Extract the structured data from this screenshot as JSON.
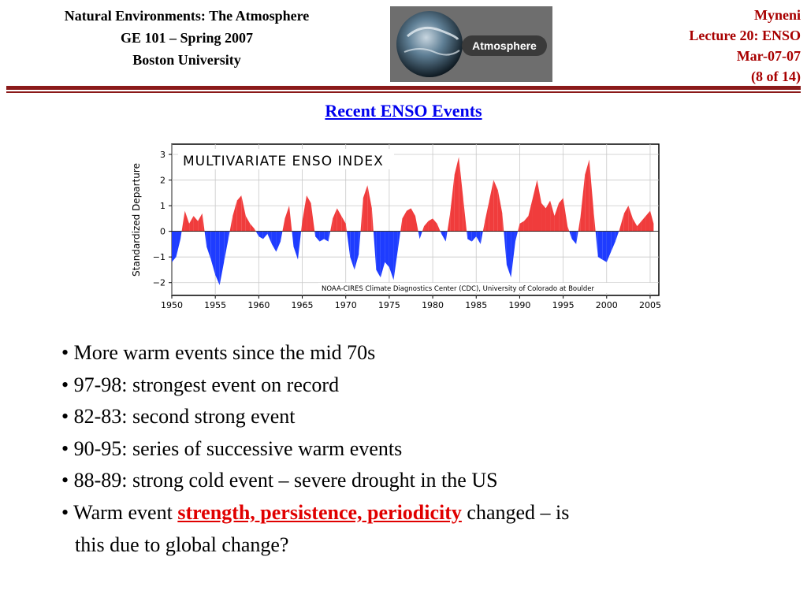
{
  "header": {
    "left_lines": [
      "Natural Environments: The Atmosphere",
      "GE 101 – Spring 2007",
      "Boston University"
    ],
    "logo_text": "Atmosphere",
    "right_lines": [
      "Myneni",
      "Lecture 20: ENSO",
      "Mar-07-07",
      "(8 of 14)"
    ]
  },
  "slide": {
    "title": "Recent ENSO Events"
  },
  "colors": {
    "accent_rule": "#8b1a1a",
    "title_link": "#0000ee",
    "positive": "#f03c3c",
    "negative": "#1e3cff",
    "emphasis": "#e00000"
  },
  "bullets": {
    "items": [
      "• More warm events since the mid 70s",
      "• 97-98: strongest event on record",
      "• 82-83: second strong event",
      "• 90-95: series of successive warm events",
      "• 88-89: strong cold event – severe drought in the US"
    ],
    "last_prefix": "• Warm event ",
    "last_emphasis": "strength, persistence, periodicity",
    "last_suffix": " changed – is",
    "last_continuation": "this due to global change?"
  },
  "chart_data": {
    "type": "area",
    "title": "MULTIVARIATE ENSO INDEX",
    "ylabel": "Standardized Departure",
    "xlabel": "",
    "credit": "NOAA-CIRES Climate Diagnostics Center (CDC), University of Colorado at Boulder",
    "xlim": [
      1950,
      2006
    ],
    "ylim": [
      -2.5,
      3.4
    ],
    "xticks": [
      1950,
      1955,
      1960,
      1965,
      1970,
      1975,
      1980,
      1985,
      1990,
      1995,
      2000,
      2005
    ],
    "yticks": [
      3,
      2,
      1,
      0,
      -1,
      -2
    ],
    "ytick_labels": [
      "3",
      "2",
      "1",
      "0",
      "−1",
      "−2"
    ],
    "grid": true,
    "series": [
      {
        "x": [
          1950.0,
          1950.5,
          1951.0,
          1951.5,
          1952.0,
          1952.5,
          1953.0,
          1953.5,
          1954.0,
          1954.5,
          1955.0,
          1955.5,
          1956.0,
          1956.5,
          1957.0,
          1957.5,
          1958.0,
          1958.5,
          1959.0,
          1959.5,
          1960.0,
          1960.5,
          1961.0,
          1961.5,
          1962.0,
          1962.5,
          1963.0,
          1963.5,
          1964.0,
          1964.5,
          1965.0,
          1965.5,
          1966.0,
          1966.5,
          1967.0,
          1967.5,
          1968.0,
          1968.5,
          1969.0,
          1969.5,
          1970.0,
          1970.5,
          1971.0,
          1971.5,
          1972.0,
          1972.5,
          1973.0,
          1973.5,
          1974.0,
          1974.5,
          1975.0,
          1975.5,
          1976.0,
          1976.5,
          1977.0,
          1977.5,
          1978.0,
          1978.5,
          1979.0,
          1979.5,
          1980.0,
          1980.5,
          1981.0,
          1981.5,
          1982.0,
          1982.5,
          1983.0,
          1983.5,
          1984.0,
          1984.5,
          1985.0,
          1985.5,
          1986.0,
          1986.5,
          1987.0,
          1987.5,
          1988.0,
          1988.5,
          1989.0,
          1989.5,
          1990.0,
          1990.5,
          1991.0,
          1991.5,
          1992.0,
          1992.5,
          1993.0,
          1993.5,
          1994.0,
          1994.5,
          1995.0,
          1995.5,
          1996.0,
          1996.5,
          1997.0,
          1997.5,
          1998.0,
          1998.5,
          1999.0,
          1999.5,
          2000.0,
          2000.5,
          2001.0,
          2001.5,
          2002.0,
          2002.5,
          2003.0,
          2003.5,
          2004.0,
          2004.5,
          2005.0,
          2005.4
        ],
        "values": [
          -1.2,
          -1.0,
          -0.3,
          0.8,
          0.3,
          0.6,
          0.4,
          0.7,
          -0.6,
          -1.1,
          -1.7,
          -2.1,
          -1.2,
          -0.3,
          0.6,
          1.2,
          1.4,
          0.6,
          0.3,
          0.1,
          -0.2,
          -0.3,
          -0.1,
          -0.5,
          -0.8,
          -0.4,
          0.5,
          1.0,
          -0.6,
          -1.1,
          0.4,
          1.4,
          1.1,
          -0.2,
          -0.4,
          -0.3,
          -0.4,
          0.5,
          0.9,
          0.6,
          0.3,
          -1.0,
          -1.5,
          -0.9,
          1.3,
          1.8,
          0.9,
          -1.5,
          -1.8,
          -1.2,
          -1.4,
          -1.9,
          -0.7,
          0.5,
          0.8,
          0.9,
          0.6,
          -0.3,
          0.2,
          0.4,
          0.5,
          0.3,
          -0.1,
          -0.4,
          0.7,
          2.2,
          2.9,
          1.3,
          -0.3,
          -0.4,
          -0.2,
          -0.5,
          0.4,
          1.2,
          2.0,
          1.6,
          0.7,
          -1.3,
          -1.8,
          -0.4,
          0.3,
          0.4,
          0.6,
          1.3,
          2.0,
          1.1,
          0.9,
          1.2,
          0.6,
          1.1,
          1.3,
          0.2,
          -0.3,
          -0.5,
          0.6,
          2.2,
          2.8,
          0.8,
          -1.0,
          -1.1,
          -1.2,
          -0.8,
          -0.4,
          0.1,
          0.7,
          1.0,
          0.5,
          0.2,
          0.4,
          0.6,
          0.8,
          0.3
        ]
      }
    ]
  }
}
